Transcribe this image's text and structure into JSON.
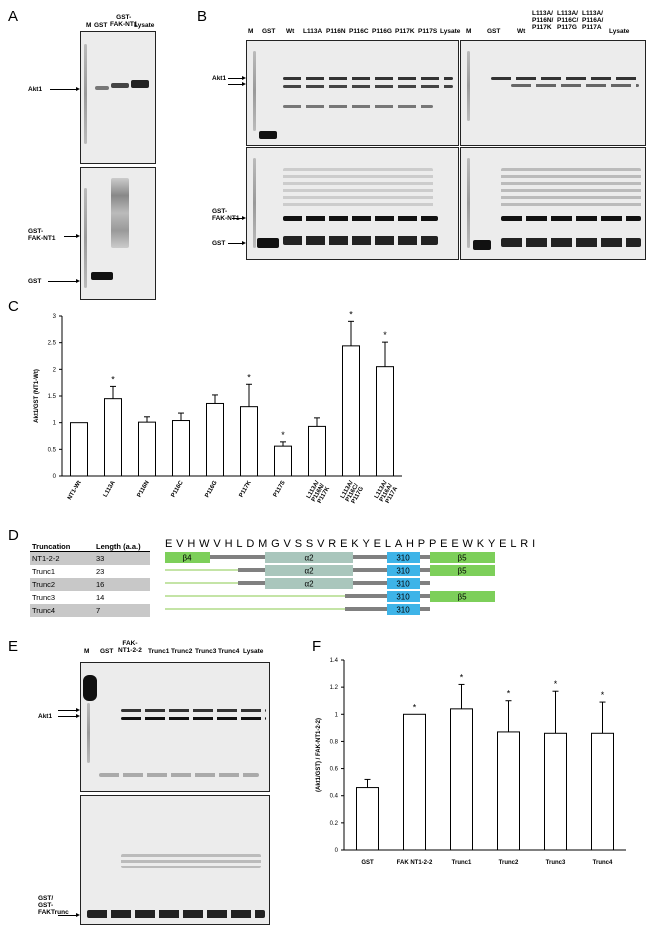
{
  "panels": {
    "A": {
      "letter": "A",
      "lanes": [
        "M",
        "GST",
        "GST-\nFAK-NT1",
        "Lysate"
      ],
      "top_label": "Akt1",
      "bottom_labels": [
        "GST-\nFAK-NT1",
        "GST"
      ]
    },
    "B": {
      "letter": "B",
      "lanes_left": [
        "M",
        "GST",
        "Wt",
        "L113A",
        "P116N",
        "P116C",
        "P116G",
        "P117K",
        "P117S",
        "Lysate"
      ],
      "lanes_right": [
        "M",
        "GST",
        "Wt",
        "L113A/\nP116N/\nP117K",
        "L113A/\nP116C/\nP117G",
        "L113A/\nP116A/\nP117A",
        "Lysate"
      ],
      "top_label": "Akt1",
      "bottom_labels": [
        "GST-\nFAK-NT1",
        "GST"
      ]
    },
    "C": {
      "letter": "C"
    },
    "D": {
      "letter": "D",
      "headers": [
        "Truncation",
        "Length (a.a.)"
      ],
      "sequence": "EVHWVHLDMGVSSVREKYELAHPPEEWKYELRI",
      "rows": [
        {
          "name": "NT1-2-2",
          "length": "33"
        },
        {
          "name": "Trunc1",
          "length": "23"
        },
        {
          "name": "Trunc2",
          "length": "16"
        },
        {
          "name": "Trunc3",
          "length": "14"
        },
        {
          "name": "Trunc4",
          "length": "7"
        }
      ],
      "elements": {
        "b4": "β4",
        "a2": "α2",
        "h310": "310",
        "b5": "β5"
      },
      "colors": {
        "beta": "#7dcf5a",
        "alpha": "#a9c6bc",
        "h310": "#3eb4e8",
        "line": "#8ac84e",
        "bar": "#808080"
      }
    },
    "E": {
      "letter": "E",
      "lanes": [
        "M",
        "GST",
        "FAK-\nNT1-2-2",
        "Trunc1",
        "Trunc2",
        "Trunc3",
        "Trunc4",
        "Lysate"
      ],
      "top_label": "Akt1",
      "bottom_label": "GST/\nGST-\nFAKTrunc"
    },
    "F": {
      "letter": "F"
    }
  },
  "chart_data": [
    {
      "type": "bar",
      "panel": "C",
      "categories": [
        "NT1-Wt",
        "L113A",
        "P116N",
        "P116C",
        "P116G",
        "P117K",
        "P117S",
        "L113A/\nP116N/\nP117K",
        "L113A/\nP116C/\nP117G",
        "L113A/\nP116A/\nP117A"
      ],
      "values": [
        1.0,
        1.45,
        1.01,
        1.04,
        1.36,
        1.3,
        0.56,
        0.93,
        2.44,
        2.05
      ],
      "errors": [
        0,
        0.23,
        0.1,
        0.14,
        0.16,
        0.42,
        0.08,
        0.16,
        0.46,
        0.46
      ],
      "significant": [
        false,
        true,
        false,
        false,
        false,
        true,
        true,
        false,
        true,
        true
      ],
      "ylabel": "Akt1/GST (NT1-Wt)",
      "ylim": [
        0,
        3
      ],
      "yticks": [
        "0",
        "0.5",
        "1",
        "1.5",
        "2",
        "2.5",
        "3"
      ]
    },
    {
      "type": "bar",
      "panel": "F",
      "categories": [
        "GST",
        "FAK NT1-2-2",
        "Trunc1",
        "Trunc2",
        "Trunc3",
        "Trunc4"
      ],
      "values": [
        0.46,
        1.0,
        1.04,
        0.87,
        0.86,
        0.86
      ],
      "errors": [
        0.06,
        0,
        0.18,
        0.23,
        0.31,
        0.23
      ],
      "significant": [
        false,
        true,
        true,
        true,
        true,
        true
      ],
      "ylabel": "(Akt1/GST) / FAK-NT1-2-2)",
      "ylim": [
        0,
        1.4
      ],
      "yticks": [
        "0",
        "0.2",
        "0.4",
        "0.6",
        "0.8",
        "1",
        "1.2",
        "1.4"
      ]
    }
  ]
}
